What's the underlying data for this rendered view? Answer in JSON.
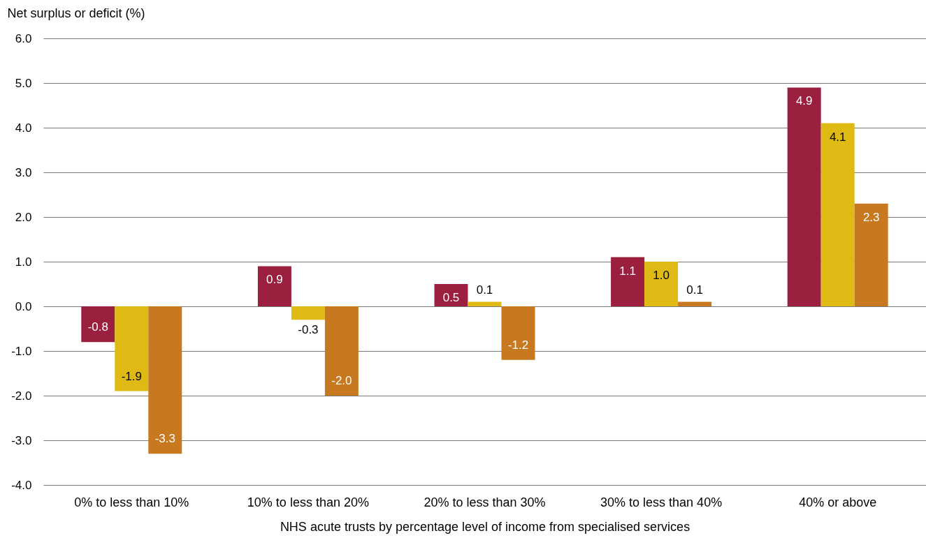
{
  "chart_data": {
    "type": "bar",
    "xlabel": "NHS acute trusts by percentage level of income from specialised services",
    "ylabel": "Net surplus or deficit (%)",
    "categories": [
      "0% to less than 10%",
      "10% to less than 20%",
      "20% to less than 30%",
      "30% to less than 40%",
      "40% or above"
    ],
    "series": [
      {
        "color": "#9b1f3e",
        "values": [
          -0.8,
          0.9,
          0.5,
          1.1,
          4.9
        ],
        "value_labels": [
          "-0.8",
          "0.9",
          "0.5",
          "1.1",
          "4.9"
        ]
      },
      {
        "color": "#dfb914",
        "values": [
          -1.9,
          -0.3,
          0.1,
          1.0,
          4.1
        ],
        "value_labels": [
          "-1.9",
          "-0.3",
          "0.1",
          "1.0",
          "4.1"
        ]
      },
      {
        "color": "#c8781f",
        "values": [
          -3.3,
          -2.0,
          -1.2,
          0.1,
          2.3
        ],
        "value_labels": [
          "-3.3",
          "-2.0",
          "-1.2",
          "0.1",
          "2.3"
        ]
      }
    ],
    "ylim": [
      -4,
      6
    ],
    "yticks": [
      {
        "value": -4,
        "label": "-4.0"
      },
      {
        "value": -3,
        "label": "-3.0"
      },
      {
        "value": -2,
        "label": "-2.0"
      },
      {
        "value": -1,
        "label": "-1.0"
      },
      {
        "value": 0,
        "label": "0.0"
      },
      {
        "value": 1,
        "label": "1.0"
      },
      {
        "value": 2,
        "label": "2.0"
      },
      {
        "value": 3,
        "label": "3.0"
      },
      {
        "value": 4,
        "label": "4.0"
      },
      {
        "value": 5,
        "label": "5.0"
      },
      {
        "value": 6,
        "label": "6.0"
      }
    ],
    "grid": "y"
  }
}
